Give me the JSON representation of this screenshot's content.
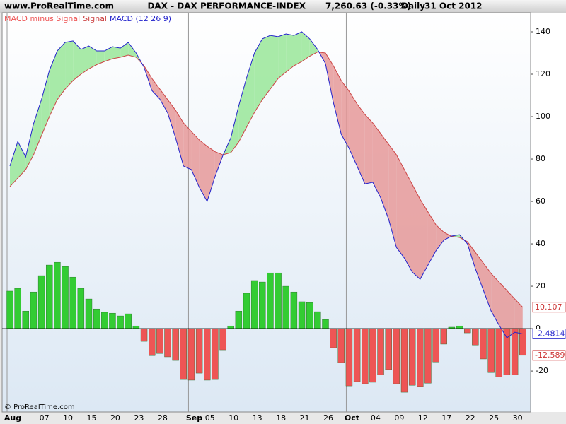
{
  "chart_data": {
    "type": "macd",
    "site": "www.ProRealTime.com",
    "title": "DAX - DAX PERFORMANCE-INDEX",
    "price": "7,260.63 (-0.33%)",
    "period": "Daily",
    "date": "31 Oct 2012",
    "footer": "© ProRealTime.com",
    "categories": [
      "Aug",
      null,
      null,
      null,
      "07",
      null,
      null,
      "10",
      null,
      null,
      "15",
      null,
      null,
      "20",
      null,
      null,
      "23",
      null,
      null,
      "28",
      null,
      null,
      null,
      "Sep",
      null,
      "05",
      null,
      null,
      "10",
      null,
      null,
      "13",
      null,
      null,
      "18",
      null,
      null,
      "21",
      null,
      null,
      "26",
      null,
      null,
      "Oct",
      null,
      null,
      "04",
      null,
      null,
      "09",
      null,
      null,
      "12",
      null,
      null,
      "17",
      null,
      null,
      "22",
      null,
      null,
      "25",
      null,
      null,
      "30",
      null
    ],
    "series": [
      {
        "name": "MACD minus Signal",
        "color": "#33cc33",
        "negative_color": "#ee5555",
        "values": [
          17.7,
          19,
          8.3,
          17.3,
          25,
          30,
          31.3,
          29.3,
          24.3,
          19,
          14,
          9.3,
          7.7,
          7.3,
          6,
          7,
          1.3,
          -6,
          -12.7,
          -11.7,
          -13.3,
          -15,
          -24,
          -24.3,
          -21,
          -24.3,
          -24,
          -10,
          1.3,
          8.3,
          16.7,
          22.7,
          22,
          26.3,
          26.3,
          20,
          17.3,
          12.7,
          12.3,
          8,
          4.3,
          -9,
          -16,
          -27,
          -25,
          -26,
          -25.3,
          -21.7,
          -19.3,
          -26,
          -30,
          -26.7,
          -27.3,
          -25.7,
          -15.7,
          -7.3,
          0.7,
          1.3,
          -2,
          -7.7,
          -14.3,
          -20.7,
          -22.7,
          -21.7,
          -21.7,
          -12.589
        ]
      },
      {
        "name": "Signal",
        "color": "#cc4444",
        "values": [
          67,
          71,
          75,
          82,
          91,
          100,
          108,
          113,
          117,
          120,
          122.5,
          124.5,
          126,
          127.3,
          128,
          129,
          128,
          124,
          118,
          113,
          108,
          103,
          97,
          93,
          89,
          86,
          83.5,
          82,
          83,
          88,
          95,
          102,
          108,
          113,
          118,
          121,
          124,
          126,
          128.5,
          130.5,
          130,
          124,
          117,
          112,
          106,
          101,
          97,
          92,
          87,
          82,
          75,
          68,
          61,
          55,
          49,
          45.5,
          43.5,
          43,
          41,
          36,
          31,
          26,
          22,
          18,
          14,
          10.107
        ]
      },
      {
        "name": "MACD (12 26 9)",
        "color": "#2222cc",
        "values": [
          76.7,
          88.3,
          81,
          96.7,
          108,
          121.7,
          131,
          135,
          135.7,
          131.7,
          133.3,
          131,
          131,
          133,
          132.3,
          135,
          130,
          123.3,
          112.3,
          108.3,
          101.7,
          90,
          76.7,
          75,
          66.7,
          60,
          71.7,
          81.7,
          90,
          105,
          118.3,
          130,
          136.7,
          138.3,
          137.7,
          139,
          138.3,
          140,
          136.7,
          131.7,
          125,
          106.7,
          91.7,
          85,
          76.7,
          68.3,
          69,
          61.7,
          51.7,
          38.3,
          33.3,
          26.7,
          23.3,
          30,
          36.7,
          41.7,
          43.7,
          44.3,
          40,
          28.3,
          18.3,
          8.3,
          1.7,
          -4.3,
          -1.7,
          -2.4814
        ]
      }
    ],
    "ylim": [
      -39.3,
      149
    ],
    "yticks": [
      -20,
      0,
      20,
      40,
      60,
      80,
      100,
      120,
      140
    ],
    "grid": false
  }
}
